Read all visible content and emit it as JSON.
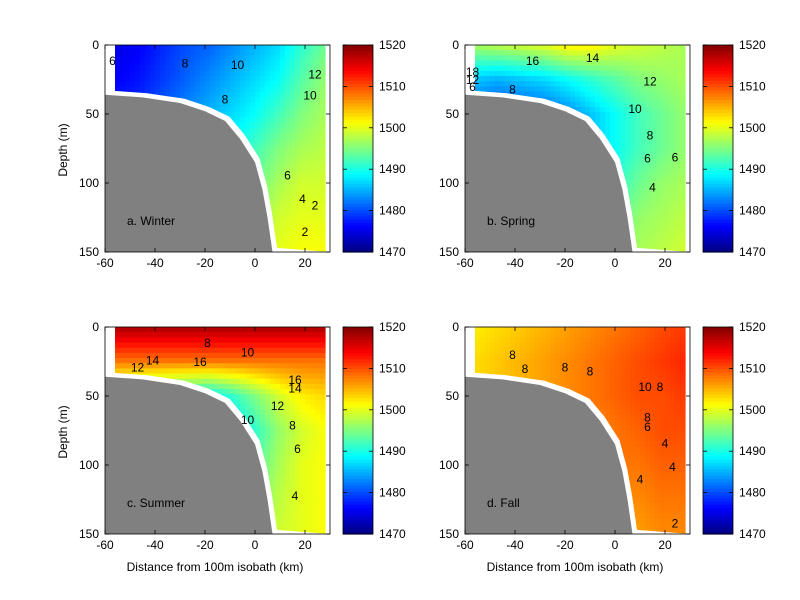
{
  "chart_data": {
    "type": "heatmap",
    "x_range": [
      -60,
      30
    ],
    "y_range": [
      0,
      150
    ],
    "x_ticks": [
      "-60",
      "-40",
      "-20",
      "0",
      "20"
    ],
    "y_ticks": [
      "0",
      "50",
      "100",
      "150"
    ],
    "ylabel": "Depth (m)",
    "xlabel": "Distance from 100m isobath (km)",
    "colorbar": {
      "min": 1470,
      "max": 1520,
      "ticks": [
        "1520",
        "1510",
        "1500",
        "1490",
        "1480",
        "1470"
      ]
    },
    "bathymetry": [
      [
        -60,
        36
      ],
      [
        -45,
        38
      ],
      [
        -30,
        42
      ],
      [
        -20,
        48
      ],
      [
        -12,
        55
      ],
      [
        -6,
        68
      ],
      [
        0,
        85
      ],
      [
        3,
        105
      ],
      [
        5,
        125
      ],
      [
        7,
        150
      ]
    ],
    "panels": [
      {
        "label": "a. Winter",
        "grid": [
          [
            1475,
            1476,
            1478,
            1480,
            1481,
            1483,
            1485,
            1487,
            1491,
            1494
          ],
          [
            1476,
            1477,
            1479,
            1481,
            1483,
            1485,
            1487,
            1489,
            1493,
            1496
          ],
          [
            1478,
            1479,
            1481,
            1483,
            1485,
            1487,
            1489,
            1492,
            1495,
            1497
          ],
          [
            1480,
            1481,
            1483,
            1485,
            1487,
            1489,
            1492,
            1495,
            1497,
            1498
          ],
          [
            1482,
            1483,
            1485,
            1487,
            1489,
            1491,
            1494,
            1497,
            1499,
            1499
          ],
          [
            1484,
            1485,
            1487,
            1489,
            1491,
            1493,
            1496,
            1499,
            1500,
            1500
          ],
          [
            1486,
            1487,
            1489,
            1491,
            1493,
            1495,
            1497,
            1500,
            1501,
            1501
          ]
        ],
        "contour_labels": [
          {
            "text": "6",
            "x": -57,
            "y": 12
          },
          {
            "text": "8",
            "x": -28,
            "y": 14
          },
          {
            "text": "10",
            "x": -7,
            "y": 15
          },
          {
            "text": "12",
            "x": 24,
            "y": 22
          },
          {
            "text": "10",
            "x": 22,
            "y": 37
          },
          {
            "text": "8",
            "x": -12,
            "y": 40
          },
          {
            "text": "6",
            "x": 13,
            "y": 95
          },
          {
            "text": "4",
            "x": 19,
            "y": 112
          },
          {
            "text": "2",
            "x": 24,
            "y": 117
          },
          {
            "text": "2",
            "x": 20,
            "y": 136
          }
        ]
      },
      {
        "label": "b. Spring",
        "grid": [
          [
            1497,
            1498,
            1499,
            1500,
            1502,
            1502,
            1500,
            1499,
            1498,
            1497
          ],
          [
            1486,
            1485,
            1486,
            1487,
            1489,
            1491,
            1493,
            1495,
            1496,
            1497
          ],
          [
            1480,
            1479,
            1480,
            1481,
            1483,
            1486,
            1489,
            1492,
            1494,
            1496
          ],
          [
            1480,
            1480,
            1481,
            1482,
            1484,
            1486,
            1489,
            1492,
            1494,
            1496
          ],
          [
            1482,
            1482,
            1483,
            1484,
            1486,
            1488,
            1491,
            1494,
            1496,
            1497
          ],
          [
            1484,
            1484,
            1485,
            1486,
            1488,
            1490,
            1493,
            1496,
            1497,
            1498
          ],
          [
            1486,
            1486,
            1487,
            1488,
            1490,
            1492,
            1495,
            1497,
            1498,
            1499
          ]
        ],
        "contour_labels": [
          {
            "text": "16",
            "x": -33,
            "y": 12
          },
          {
            "text": "14",
            "x": -9,
            "y": 10
          },
          {
            "text": "18",
            "x": -57,
            "y": 20
          },
          {
            "text": "12",
            "x": -57,
            "y": 26
          },
          {
            "text": "6",
            "x": -57,
            "y": 31
          },
          {
            "text": "8",
            "x": -41,
            "y": 33
          },
          {
            "text": "12",
            "x": 14,
            "y": 27
          },
          {
            "text": "10",
            "x": 8,
            "y": 47
          },
          {
            "text": "8",
            "x": 14,
            "y": 66
          },
          {
            "text": "6",
            "x": 13,
            "y": 83
          },
          {
            "text": "6",
            "x": 24,
            "y": 82
          },
          {
            "text": "4",
            "x": 15,
            "y": 104
          }
        ]
      },
      {
        "label": "c. Summer",
        "grid": [
          [
            1518,
            1518,
            1518,
            1518,
            1518,
            1518,
            1518,
            1518,
            1518,
            1518
          ],
          [
            1508,
            1508,
            1508,
            1508,
            1508,
            1508,
            1508,
            1508,
            1508,
            1508
          ],
          [
            1494,
            1492,
            1490,
            1489,
            1488,
            1491,
            1495,
            1499,
            1502,
            1503
          ],
          [
            1488,
            1486,
            1484,
            1483,
            1484,
            1487,
            1491,
            1496,
            1499,
            1501
          ],
          [
            1490,
            1488,
            1486,
            1485,
            1486,
            1489,
            1493,
            1497,
            1500,
            1501
          ],
          [
            1492,
            1490,
            1488,
            1487,
            1488,
            1491,
            1495,
            1498,
            1500,
            1501
          ],
          [
            1494,
            1492,
            1490,
            1489,
            1490,
            1493,
            1496,
            1499,
            1500,
            1501
          ]
        ],
        "contour_labels": [
          {
            "text": "8",
            "x": -19,
            "y": 12
          },
          {
            "text": "10",
            "x": -3,
            "y": 19
          },
          {
            "text": "14",
            "x": -41,
            "y": 25
          },
          {
            "text": "16",
            "x": -22,
            "y": 26
          },
          {
            "text": "12",
            "x": -47,
            "y": 30
          },
          {
            "text": "16",
            "x": 16,
            "y": 39
          },
          {
            "text": "14",
            "x": 16,
            "y": 45
          },
          {
            "text": "12",
            "x": 9,
            "y": 58
          },
          {
            "text": "10",
            "x": -3,
            "y": 68
          },
          {
            "text": "8",
            "x": 15,
            "y": 72
          },
          {
            "text": "6",
            "x": 17,
            "y": 89
          },
          {
            "text": "4",
            "x": 16,
            "y": 123
          }
        ]
      },
      {
        "label": "d. Fall",
        "grid": [
          [
            1502,
            1503,
            1504,
            1505,
            1506,
            1507,
            1508,
            1509,
            1510,
            1511
          ],
          [
            1503,
            1504,
            1505,
            1506,
            1507,
            1508,
            1509,
            1510,
            1511,
            1512
          ],
          [
            1503,
            1504,
            1505,
            1506,
            1507,
            1508,
            1509,
            1510,
            1510,
            1511
          ],
          [
            1503,
            1504,
            1505,
            1506,
            1506,
            1507,
            1508,
            1509,
            1510,
            1510
          ],
          [
            1503,
            1504,
            1504,
            1505,
            1506,
            1507,
            1508,
            1508,
            1509,
            1509
          ],
          [
            1503,
            1503,
            1504,
            1505,
            1505,
            1506,
            1507,
            1507,
            1508,
            1508
          ],
          [
            1502,
            1503,
            1503,
            1504,
            1505,
            1505,
            1506,
            1506,
            1507,
            1507
          ]
        ],
        "contour_labels": [
          {
            "text": "8",
            "x": -41,
            "y": 21
          },
          {
            "text": "8",
            "x": -36,
            "y": 31
          },
          {
            "text": "8",
            "x": -20,
            "y": 30
          },
          {
            "text": "8",
            "x": -10,
            "y": 33
          },
          {
            "text": "10",
            "x": 12,
            "y": 44
          },
          {
            "text": "8",
            "x": 18,
            "y": 44
          },
          {
            "text": "8",
            "x": 13,
            "y": 66
          },
          {
            "text": "6",
            "x": 13,
            "y": 73
          },
          {
            "text": "4",
            "x": 20,
            "y": 85
          },
          {
            "text": "4",
            "x": 10,
            "y": 111
          },
          {
            "text": "4",
            "x": 23,
            "y": 102
          },
          {
            "text": "2",
            "x": 24,
            "y": 143
          }
        ]
      }
    ]
  }
}
